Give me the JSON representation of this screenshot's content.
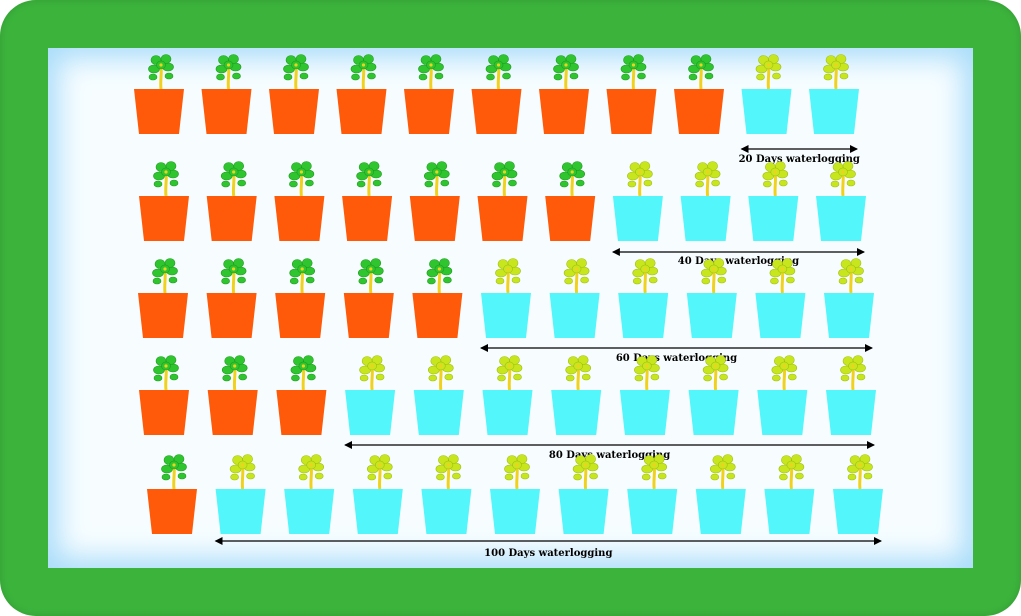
{
  "colors": {
    "frame": "#3cb43c",
    "background": "#f7fdff",
    "normal_pot": "#ff5a0a",
    "waterlogged_pot": "#52f6fb",
    "healthy_leaf": "#2ec52e",
    "stressed_leaf": "#c8e61e",
    "stem": "#f0d21e",
    "arrow": "#000000"
  },
  "icons": {
    "normal_pot": "flower-pot-icon",
    "waterlogged_pot": "waterlogged-pot-icon",
    "plant": "seedling-icon"
  },
  "rows": [
    {
      "label": "20 Days waterlogging",
      "normal_count": 9,
      "waterlogged_count": 2
    },
    {
      "label": "40 Days waterlogging",
      "normal_count": 7,
      "waterlogged_count": 4
    },
    {
      "label": "60 Days waterlogging",
      "normal_count": 5,
      "waterlogged_count": 6
    },
    {
      "label": "80 Days waterlogging",
      "normal_count": 3,
      "waterlogged_count": 8
    },
    {
      "label": "100 Days waterlogging",
      "normal_count": 1,
      "waterlogged_count": 10
    }
  ]
}
